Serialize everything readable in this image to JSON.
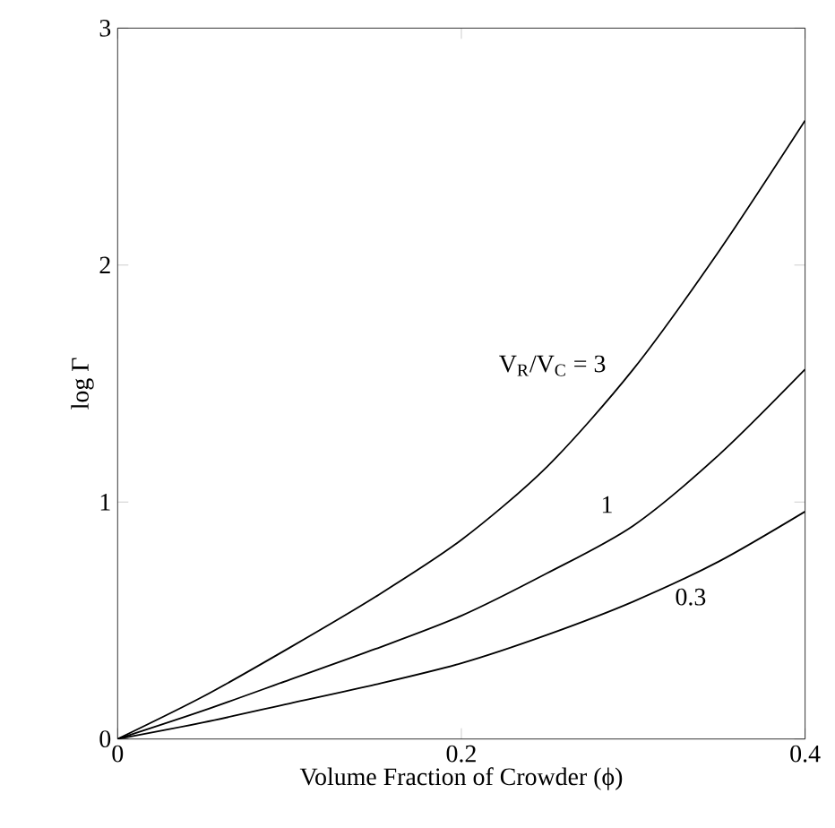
{
  "chart_data": {
    "type": "line",
    "xlabel": "Volume Fraction of Crowder (ϕ)",
    "ylabel": "log Γ",
    "xlim": [
      0,
      0.4
    ],
    "ylim": [
      0,
      3
    ],
    "xticks": [
      0,
      0.2,
      0.4
    ],
    "yticks": [
      0,
      1,
      2,
      3
    ],
    "grid": false,
    "legend": false,
    "marker": "none",
    "line_style": "solid",
    "x": [
      0,
      0.05,
      0.1,
      0.15,
      0.2,
      0.25,
      0.3,
      0.35,
      0.4
    ],
    "series": [
      {
        "name": "V$_{R}$/V$_{C}$ = 3",
        "color": "#000000",
        "values": [
          0,
          0.18,
          0.385,
          0.6,
          0.84,
          1.15,
          1.56,
          2.06,
          2.61
        ]
      },
      {
        "name": "1",
        "color": "#000000",
        "values": [
          0,
          0.12,
          0.25,
          0.38,
          0.52,
          0.7,
          0.9,
          1.2,
          1.56
        ]
      },
      {
        "name": "0.3",
        "color": "#000000",
        "values": [
          0,
          0.07,
          0.15,
          0.23,
          0.32,
          0.44,
          0.58,
          0.75,
          0.96
        ]
      }
    ]
  }
}
